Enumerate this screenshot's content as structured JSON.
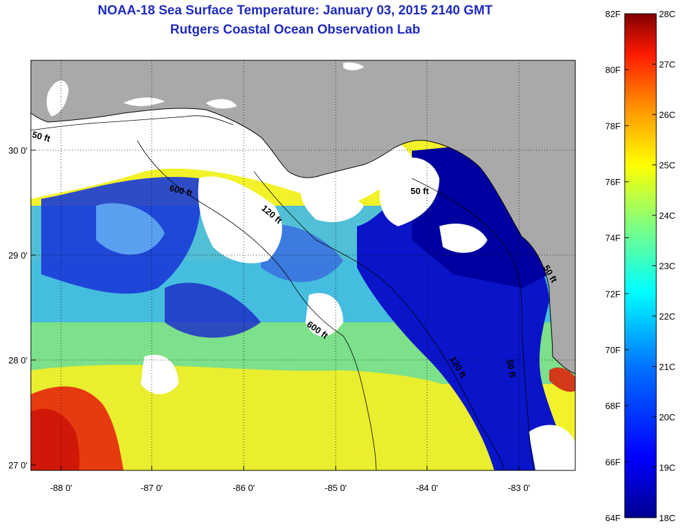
{
  "header": {
    "title": "NOAA-18 Sea Surface Temperature:  January 03, 2015 2140 GMT",
    "subtitle": "Rutgers Coastal Ocean Observation Lab"
  },
  "map": {
    "region": "Northeastern Gulf of Mexico",
    "lon_range": [
      -88.35,
      -82.4
    ],
    "lat_range": [
      26.95,
      30.85
    ],
    "lon_ticks": [
      "-88 0'",
      "-87 0'",
      "-86 0'",
      "-85 0'",
      "-84 0'",
      "-83 0'"
    ],
    "lat_ticks": [
      "30 0'",
      "29 0'",
      "28 0'",
      "27 0'"
    ],
    "isobath_labels": [
      "50 ft",
      "600 ft",
      "120 ft",
      "50 ft",
      "600 ft",
      "120 ft",
      "50 ft",
      "50 ft"
    ]
  },
  "colorbar": {
    "fahrenheit_labels": [
      "82F",
      "80F",
      "78F",
      "76F",
      "74F",
      "72F",
      "70F",
      "68F",
      "66F",
      "64F"
    ],
    "celsius_labels": [
      "28C",
      "27C",
      "26C",
      "25C",
      "24C",
      "23C",
      "22C",
      "21C",
      "20C",
      "19C",
      "18C"
    ],
    "colors": {
      "cold": "#00008f",
      "cool": "#0073ff",
      "mid": "#00ffff",
      "warm": "#ffff00",
      "hot": "#ff2000",
      "hottest": "#800000",
      "land": "#a9a9a9",
      "no_data": "#ffffff"
    }
  }
}
